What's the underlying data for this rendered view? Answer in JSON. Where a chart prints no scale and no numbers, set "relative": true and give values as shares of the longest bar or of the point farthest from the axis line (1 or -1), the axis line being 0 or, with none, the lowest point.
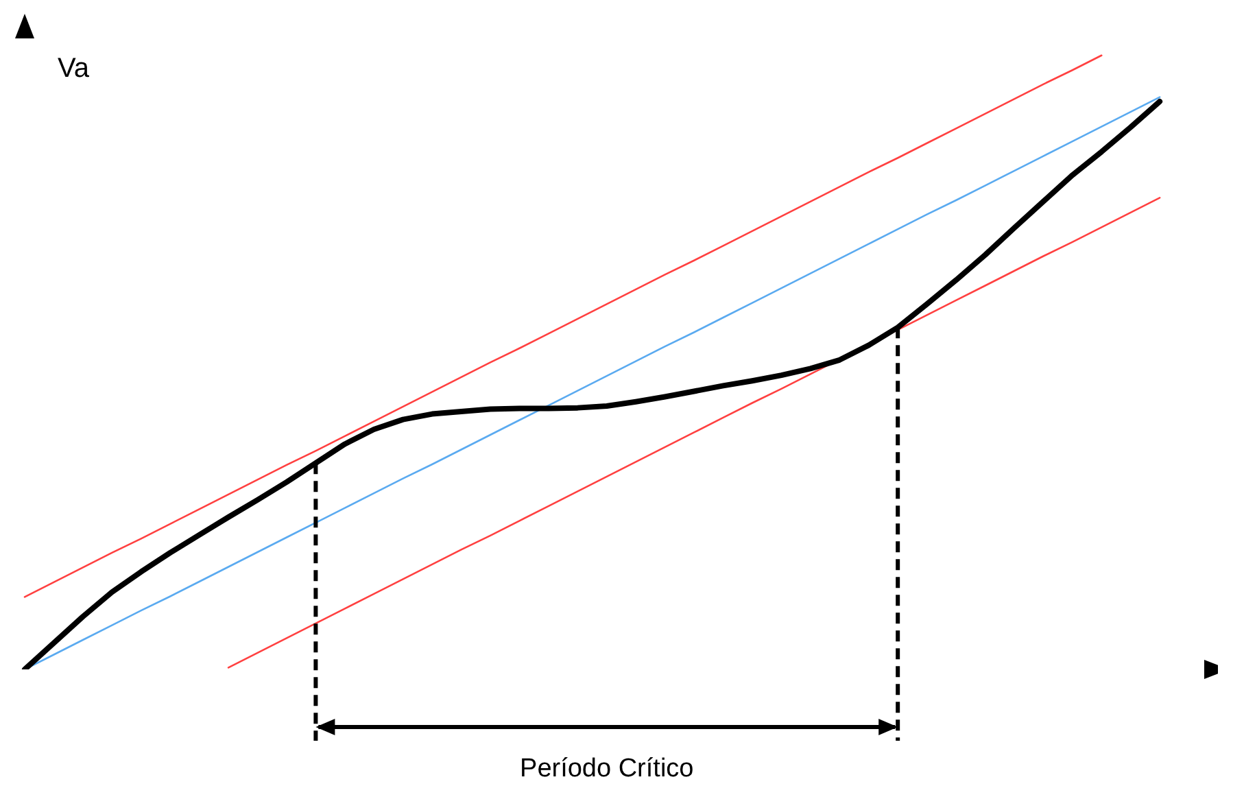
{
  "chart_data": {
    "type": "line",
    "relative": true,
    "ylabel": "Va",
    "xlabel": "Período Crítico",
    "categories": [
      null,
      null,
      null,
      null,
      null,
      null,
      null,
      null,
      null,
      null,
      null,
      null,
      null,
      null,
      null,
      null,
      null,
      null,
      null,
      null,
      null,
      null,
      null,
      null,
      null,
      null,
      null,
      null,
      null,
      null,
      null,
      null,
      null,
      null,
      null,
      null,
      null,
      null,
      null,
      null,
      null,
      null
    ],
    "series": [
      {
        "color": "#ff4040",
        "values": [
          0.118,
          0.142,
          0.166,
          0.19,
          0.213,
          0.237,
          0.261,
          0.285,
          0.309,
          0.333,
          0.356,
          0.38,
          0.404,
          0.428,
          0.452,
          0.476,
          0.5,
          0.523,
          0.547,
          0.571,
          0.595,
          0.619,
          0.643,
          0.666,
          0.69,
          0.714,
          0.738,
          0.762,
          0.786,
          0.81,
          0.833,
          0.857,
          0.881,
          0.905,
          0.929,
          0.953,
          0.976,
          1.0,
          null,
          null,
          null,
          null
        ]
      },
      {
        "color": "#5aaaf0",
        "values": [
          0,
          0.024,
          0.048,
          0.072,
          0.096,
          0.119,
          0.143,
          0.167,
          0.191,
          0.215,
          0.239,
          0.263,
          0.287,
          0.311,
          0.334,
          0.358,
          0.382,
          0.406,
          0.43,
          0.454,
          0.478,
          0.502,
          0.526,
          0.549,
          0.573,
          0.597,
          0.621,
          0.645,
          0.669,
          0.693,
          0.717,
          0.741,
          0.764,
          0.788,
          0.812,
          0.836,
          0.86,
          0.884,
          0.908,
          0.932,
          null,
          null
        ]
      },
      {
        "color": "#ff4040",
        "values": [
          null,
          null,
          null,
          null,
          null,
          null,
          null,
          0.003,
          0.027,
          0.051,
          0.075,
          0.099,
          0.123,
          0.147,
          0.171,
          0.195,
          0.218,
          0.242,
          0.266,
          0.29,
          0.314,
          0.338,
          0.362,
          0.386,
          0.41,
          0.434,
          0.457,
          0.481,
          0.505,
          0.529,
          0.553,
          0.577,
          0.601,
          0.625,
          0.649,
          0.673,
          0.696,
          0.72,
          0.744,
          0.768,
          null,
          null
        ]
      },
      {
        "color": "#000000",
        "values": [
          0,
          0.043,
          0.086,
          0.126,
          0.159,
          0.19,
          0.219,
          0.248,
          0.276,
          0.305,
          0.336,
          0.367,
          0.391,
          0.407,
          0.416,
          0.42,
          0.424,
          0.425,
          0.425,
          0.426,
          0.429,
          0.436,
          0.444,
          0.453,
          0.462,
          0.47,
          0.479,
          0.49,
          0.504,
          0.528,
          0.557,
          0.595,
          0.634,
          0.675,
          0.719,
          0.762,
          0.805,
          0.843,
          0.883,
          0.925,
          null,
          null
        ]
      }
    ]
  }
}
